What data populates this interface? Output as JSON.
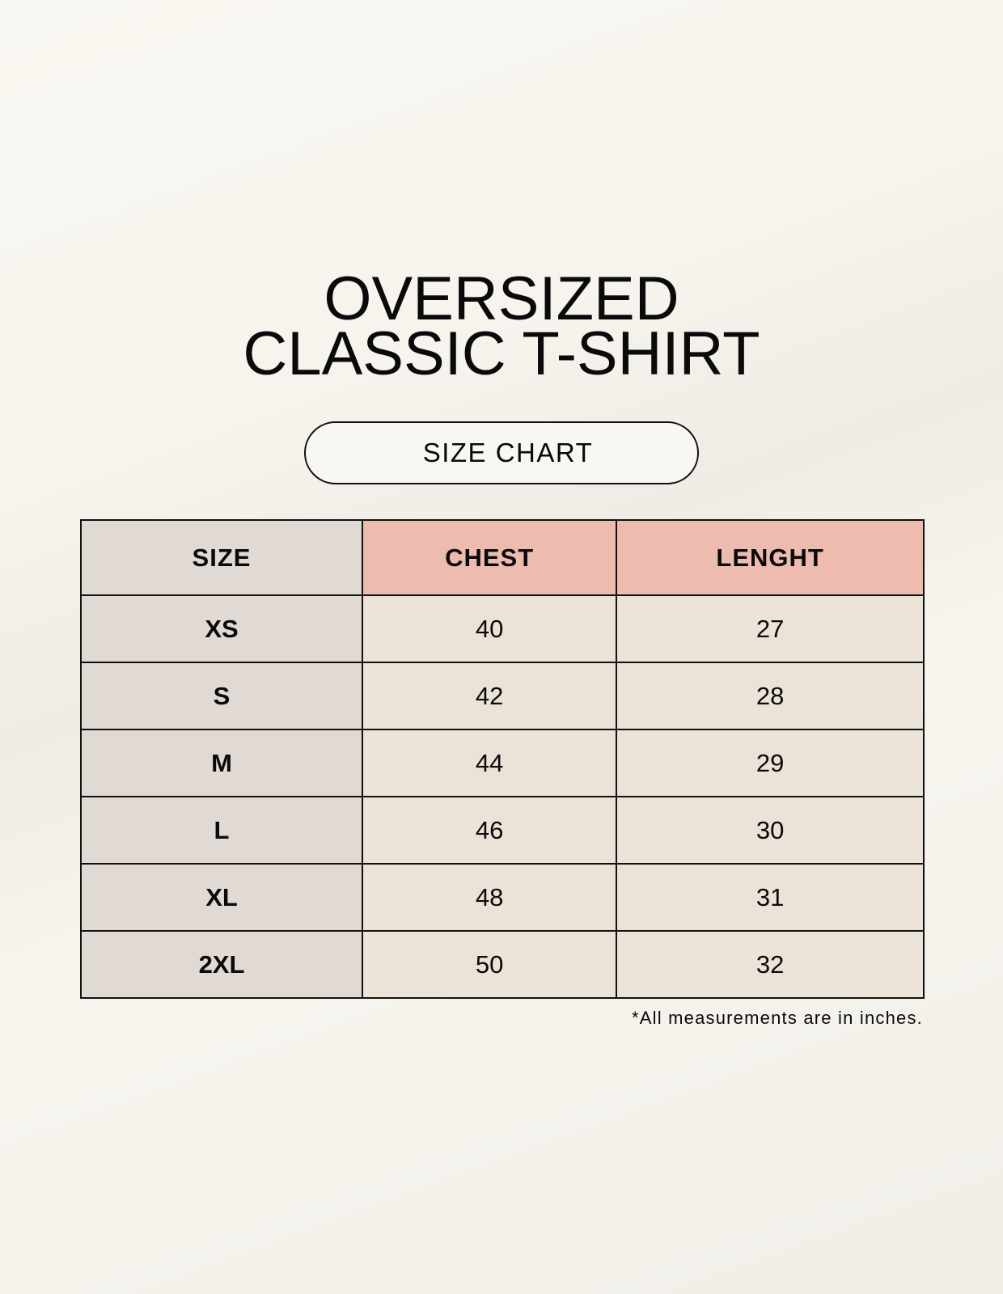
{
  "title": {
    "line1": "OVERSIZED",
    "line2": "CLASSIC T-SHIRT"
  },
  "badge": "SIZE CHART",
  "table": {
    "headers": [
      "SIZE",
      "CHEST",
      "LENGHT"
    ],
    "rows": [
      [
        "XS",
        "40",
        "27"
      ],
      [
        "S",
        "42",
        "28"
      ],
      [
        "M",
        "44",
        "29"
      ],
      [
        "L",
        "46",
        "30"
      ],
      [
        "XL",
        "48",
        "31"
      ],
      [
        "2XL",
        "50",
        "32"
      ]
    ]
  },
  "footnote": "*All measurements are in inches.",
  "colors": {
    "size_column": "#e1d9d3",
    "header_accent": "#eebcaf",
    "value_cells": "#ebe2d8"
  }
}
